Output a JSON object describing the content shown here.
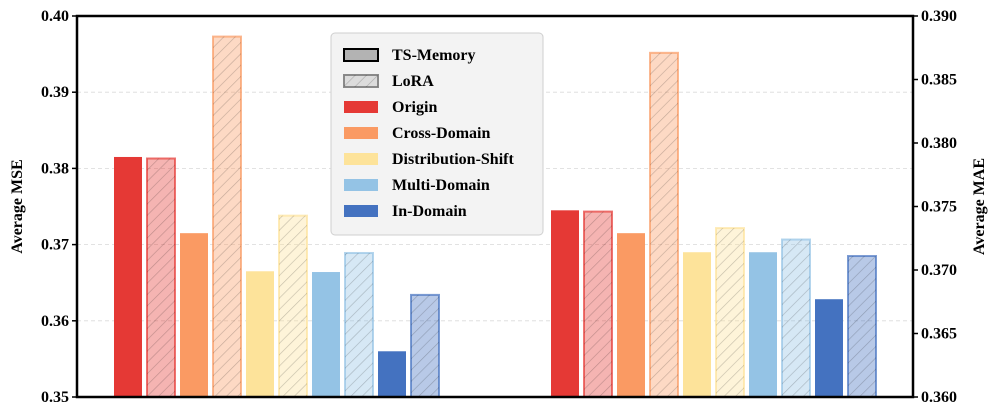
{
  "chart_data": {
    "type": "bar",
    "groups": [
      "MSE",
      "MAE"
    ],
    "methods": [
      "TS-Memory",
      "LoRA"
    ],
    "settings": [
      "Origin",
      "Cross-Domain",
      "Distribution-Shift",
      "Multi-Domain",
      "In-Domain"
    ],
    "colors": {
      "Origin": "#e53935",
      "Cross-Domain": "#fa9a63",
      "Distribution-Shift": "#fde39a",
      "Multi-Domain": "#94c3e5",
      "In-Domain": "#4472c0"
    },
    "series": [
      {
        "group": "MSE",
        "axis": "left",
        "tsmemory": [
          0.3815,
          0.3715,
          0.3665,
          0.3664,
          0.356
        ],
        "lora": [
          0.3813,
          0.3973,
          0.3738,
          0.3689,
          0.3634
        ]
      },
      {
        "group": "MAE",
        "axis": "right",
        "tsmemory": [
          0.3747,
          0.3729,
          0.3714,
          0.3714,
          0.3677
        ],
        "lora": [
          0.3746,
          0.3871,
          0.3733,
          0.3724,
          0.3711
        ]
      }
    ],
    "left_axis": {
      "label": "Average MSE",
      "ylim": [
        0.35,
        0.4
      ],
      "ticks": [
        "0.35",
        "0.36",
        "0.37",
        "0.38",
        "0.39",
        "0.40"
      ]
    },
    "right_axis": {
      "label": "Average MAE",
      "ylim": [
        0.36,
        0.39
      ],
      "ticks": [
        "0.360",
        "0.365",
        "0.370",
        "0.375",
        "0.380",
        "0.385",
        "0.390"
      ]
    },
    "legend": {
      "placement": "top-center",
      "entries": [
        "TS-Memory",
        "LoRA",
        "Origin",
        "Cross-Domain",
        "Distribution-Shift",
        "Multi-Domain",
        "In-Domain"
      ]
    },
    "grid": true
  }
}
